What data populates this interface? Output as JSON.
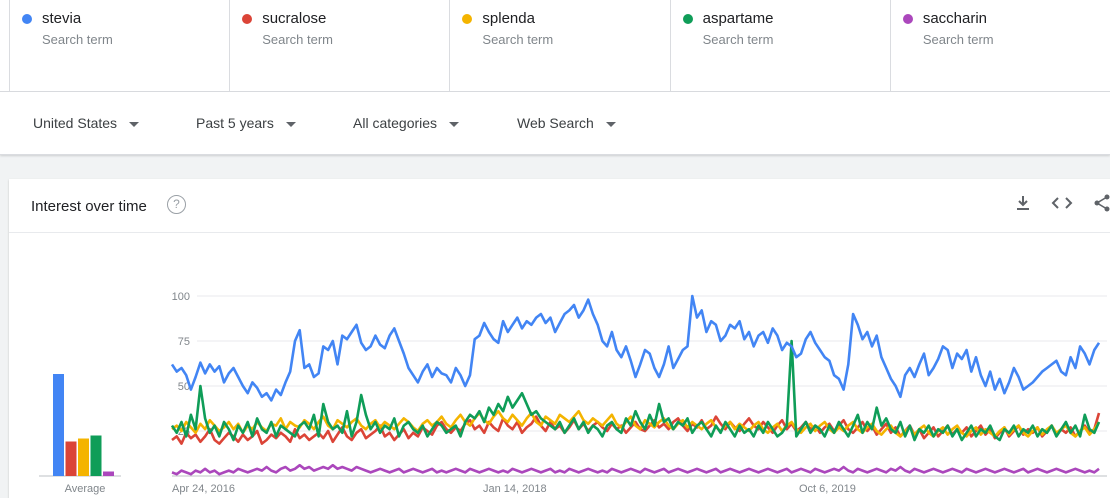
{
  "terms": [
    {
      "name": "stevia",
      "subtitle": "Search term",
      "color": "#4285f4"
    },
    {
      "name": "sucralose",
      "subtitle": "Search term",
      "color": "#db4437"
    },
    {
      "name": "splenda",
      "subtitle": "Search term",
      "color": "#f4b400"
    },
    {
      "name": "aspartame",
      "subtitle": "Search term",
      "color": "#0f9d58"
    },
    {
      "name": "saccharin",
      "subtitle": "Search term",
      "color": "#ab47bc"
    }
  ],
  "filters": {
    "region": "United States",
    "time": "Past 5 years",
    "category": "All categories",
    "search_type": "Web Search"
  },
  "card": {
    "title": "Interest over time",
    "help_icon": "help-circle-icon",
    "download_icon": "download-icon",
    "embed_icon": "embed-code-icon",
    "share_icon": "share-icon"
  },
  "chart_data": [
    {
      "type": "bar",
      "xlabel": "Average",
      "categories": [
        "stevia",
        "sucralose",
        "splenda",
        "aspartame",
        "saccharin"
      ],
      "values": [
        68,
        23,
        25,
        27,
        3
      ],
      "colors": [
        "#4285f4",
        "#db4437",
        "#f4b400",
        "#0f9d58",
        "#ab47bc"
      ],
      "ylim": [
        0,
        100
      ]
    },
    {
      "type": "line",
      "x_tick_labels": [
        "Apr 24, 2016",
        "Jan 14, 2018",
        "Oct 6, 2019"
      ],
      "y_ticks": [
        25,
        50,
        75,
        100
      ],
      "ylim": [
        0,
        100
      ],
      "grid": true,
      "series": [
        {
          "name": "stevia",
          "color": "#4285f4",
          "values": [
            62,
            58,
            60,
            56,
            48,
            55,
            63,
            57,
            62,
            58,
            61,
            52,
            57,
            60,
            55,
            50,
            46,
            52,
            49,
            44,
            46,
            42,
            48,
            45,
            52,
            58,
            75,
            81,
            60,
            62,
            55,
            57,
            72,
            70,
            75,
            62,
            78,
            76,
            80,
            84,
            74,
            70,
            72,
            78,
            73,
            71,
            78,
            82,
            75,
            68,
            60,
            56,
            52,
            58,
            62,
            55,
            60,
            57,
            56,
            52,
            60,
            56,
            50,
            56,
            76,
            78,
            85,
            80,
            76,
            74,
            86,
            80,
            84,
            88,
            82,
            86,
            84,
            88,
            90,
            85,
            88,
            80,
            85,
            90,
            92,
            95,
            88,
            92,
            98,
            90,
            84,
            75,
            72,
            80,
            70,
            66,
            72,
            64,
            55,
            62,
            70,
            68,
            60,
            55,
            62,
            72,
            60,
            65,
            70,
            72,
            100,
            88,
            92,
            80,
            86,
            84,
            75,
            78,
            84,
            82,
            86,
            76,
            80,
            72,
            78,
            80,
            74,
            82,
            78,
            70,
            74,
            72,
            66,
            68,
            76,
            80,
            74,
            70,
            66,
            64,
            56,
            54,
            48,
            62,
            90,
            84,
            76,
            80,
            72,
            78,
            66,
            60,
            54,
            50,
            44,
            56,
            60,
            55,
            62,
            68,
            56,
            60,
            65,
            72,
            70,
            60,
            68,
            65,
            70,
            58,
            66,
            56,
            50,
            58,
            48,
            54,
            46,
            52,
            60,
            55,
            48,
            50,
            52,
            55,
            58,
            60,
            62,
            64,
            58,
            56,
            66,
            60,
            72,
            68,
            62,
            70,
            74
          ]
        },
        {
          "name": "sucralose",
          "color": "#db4437",
          "values": [
            20,
            22,
            18,
            24,
            21,
            23,
            19,
            22,
            26,
            20,
            18,
            21,
            24,
            22,
            19,
            23,
            20,
            22,
            25,
            18,
            20,
            23,
            21,
            24,
            22,
            19,
            26,
            21,
            23,
            20,
            22,
            24,
            21,
            25,
            19,
            23,
            27,
            22,
            20,
            24,
            26,
            21,
            23,
            25,
            28,
            22,
            24,
            20,
            23,
            26,
            21,
            24,
            22,
            27,
            25,
            23,
            28,
            30,
            26,
            24,
            27,
            25,
            29,
            31,
            26,
            28,
            24,
            30,
            27,
            25,
            32,
            28,
            26,
            30,
            24,
            27,
            29,
            33,
            28,
            25,
            30,
            26,
            28,
            24,
            27,
            31,
            26,
            29,
            25,
            28,
            30,
            27,
            25,
            29,
            26,
            28,
            24,
            27,
            30,
            26,
            25,
            28,
            31,
            27,
            29,
            26,
            30,
            32,
            28,
            25,
            29,
            27,
            31,
            26,
            28,
            33,
            29,
            26,
            30,
            27,
            25,
            29,
            32,
            28,
            26,
            30,
            27,
            24,
            28,
            31,
            26,
            29,
            25,
            27,
            30,
            26,
            28,
            24,
            27,
            29,
            25,
            28,
            31,
            26,
            24,
            27,
            30,
            25,
            28,
            23,
            26,
            29,
            24,
            27,
            22,
            25,
            28,
            23,
            26,
            21,
            24,
            27,
            22,
            25,
            28,
            23,
            26,
            24,
            27,
            22,
            25,
            28,
            23,
            26,
            21,
            24,
            27,
            22,
            25,
            28,
            23,
            26,
            24,
            27,
            22,
            25,
            28,
            23,
            26,
            24,
            27,
            22,
            25,
            28,
            24,
            26,
            35
          ]
        },
        {
          "name": "splenda",
          "color": "#f4b400",
          "values": [
            26,
            28,
            25,
            30,
            27,
            24,
            29,
            26,
            31,
            28,
            25,
            27,
            30,
            26,
            29,
            24,
            28,
            26,
            30,
            27,
            25,
            29,
            28,
            32,
            26,
            30,
            28,
            27,
            31,
            29,
            26,
            30,
            33,
            28,
            26,
            31,
            29,
            27,
            30,
            32,
            28,
            26,
            29,
            31,
            27,
            30,
            28,
            26,
            29,
            32,
            30,
            27,
            25,
            29,
            31,
            28,
            30,
            33,
            29,
            27,
            31,
            34,
            30,
            28,
            32,
            35,
            31,
            29,
            33,
            36,
            32,
            30,
            34,
            31,
            28,
            32,
            35,
            30,
            28,
            33,
            31,
            29,
            34,
            32,
            30,
            33,
            36,
            31,
            29,
            32,
            30,
            28,
            31,
            34,
            29,
            27,
            30,
            33,
            28,
            26,
            31,
            29,
            27,
            30,
            32,
            28,
            26,
            29,
            31,
            27,
            30,
            28,
            26,
            29,
            31,
            27,
            25,
            28,
            30,
            26,
            29,
            27,
            25,
            28,
            30,
            26,
            24,
            27,
            29,
            25,
            28,
            30,
            26,
            24,
            27,
            29,
            25,
            28,
            30,
            26,
            24,
            27,
            25,
            28,
            30,
            26,
            24,
            27,
            29,
            25,
            23,
            26,
            28,
            24,
            22,
            25,
            27,
            23,
            26,
            28,
            24,
            22,
            25,
            27,
            23,
            26,
            28,
            24,
            22,
            25,
            27,
            23,
            26,
            24,
            22,
            25,
            27,
            23,
            26,
            28,
            24,
            22,
            25,
            27,
            23,
            26,
            28,
            24,
            26,
            28,
            24,
            22,
            25,
            27,
            23,
            26,
            30
          ]
        },
        {
          "name": "aspartame",
          "color": "#0f9d58",
          "values": [
            28,
            24,
            30,
            22,
            34,
            26,
            50,
            32,
            24,
            28,
            22,
            30,
            26,
            20,
            28,
            24,
            30,
            22,
            32,
            26,
            24,
            30,
            22,
            28,
            26,
            24,
            22,
            28,
            30,
            26,
            34,
            22,
            40,
            30,
            26,
            28,
            24,
            36,
            22,
            30,
            45,
            34,
            26,
            30,
            24,
            28,
            26,
            32,
            22,
            28,
            30,
            26,
            24,
            28,
            22,
            26,
            30,
            28,
            24,
            26,
            28,
            22,
            30,
            34,
            32,
            36,
            30,
            38,
            34,
            40,
            36,
            44,
            38,
            42,
            46,
            40,
            34,
            36,
            32,
            30,
            28,
            26,
            30,
            24,
            28,
            32,
            26,
            30,
            24,
            28,
            26,
            22,
            28,
            30,
            26,
            24,
            32,
            28,
            36,
            30,
            26,
            34,
            28,
            40,
            30,
            32,
            26,
            30,
            28,
            32,
            24,
            28,
            30,
            26,
            22,
            28,
            24,
            30,
            26,
            22,
            28,
            24,
            26,
            22,
            28,
            24,
            30,
            26,
            22,
            24,
            28,
            75,
            22,
            26,
            30,
            24,
            28,
            26,
            22,
            28,
            24,
            30,
            26,
            22,
            28,
            34,
            24,
            30,
            26,
            38,
            28,
            32,
            26,
            24,
            30,
            22,
            28,
            20,
            26,
            24,
            28,
            22,
            26,
            24,
            28,
            22,
            26,
            20,
            24,
            28,
            22,
            26,
            24,
            28,
            22,
            20,
            26,
            24,
            28,
            22,
            26,
            24,
            28,
            22,
            26,
            24,
            28,
            22,
            26,
            30,
            24,
            28,
            22,
            34,
            26,
            24,
            30
          ]
        },
        {
          "name": "saccharin",
          "color": "#ab47bc",
          "values": [
            2,
            1,
            3,
            2,
            1,
            3,
            2,
            4,
            2,
            3,
            1,
            2,
            3,
            2,
            4,
            3,
            2,
            3,
            4,
            3,
            5,
            3,
            2,
            4,
            5,
            3,
            4,
            6,
            4,
            5,
            3,
            4,
            5,
            4,
            6,
            4,
            5,
            4,
            3,
            5,
            4,
            3,
            2,
            3,
            4,
            3,
            2,
            3,
            4,
            2,
            3,
            4,
            3,
            2,
            3,
            4,
            2,
            3,
            2,
            3,
            4,
            3,
            2,
            4,
            3,
            2,
            3,
            4,
            3,
            2,
            3,
            2,
            4,
            3,
            2,
            3,
            4,
            3,
            2,
            3,
            4,
            2,
            3,
            2,
            4,
            3,
            2,
            3,
            4,
            3,
            2,
            3,
            2,
            4,
            3,
            2,
            3,
            4,
            3,
            2,
            4,
            3,
            2,
            3,
            4,
            2,
            3,
            4,
            3,
            2,
            3,
            4,
            3,
            2,
            3,
            4,
            2,
            3,
            4,
            3,
            2,
            3,
            4,
            3,
            2,
            3,
            4,
            3,
            2,
            3,
            4,
            2,
            3,
            4,
            3,
            2,
            4,
            3,
            2,
            3,
            4,
            3,
            5,
            3,
            2,
            4,
            3,
            2,
            3,
            4,
            3,
            2,
            4,
            3,
            5,
            3,
            2,
            4,
            3,
            2,
            3,
            4,
            3,
            2,
            3,
            4,
            3,
            2,
            4,
            3,
            2,
            3,
            4,
            3,
            2,
            3,
            4,
            3,
            2,
            3,
            4,
            2,
            3,
            4,
            3,
            2,
            3,
            4,
            3,
            2,
            3,
            4,
            3,
            2,
            3,
            2,
            4
          ]
        }
      ]
    }
  ]
}
